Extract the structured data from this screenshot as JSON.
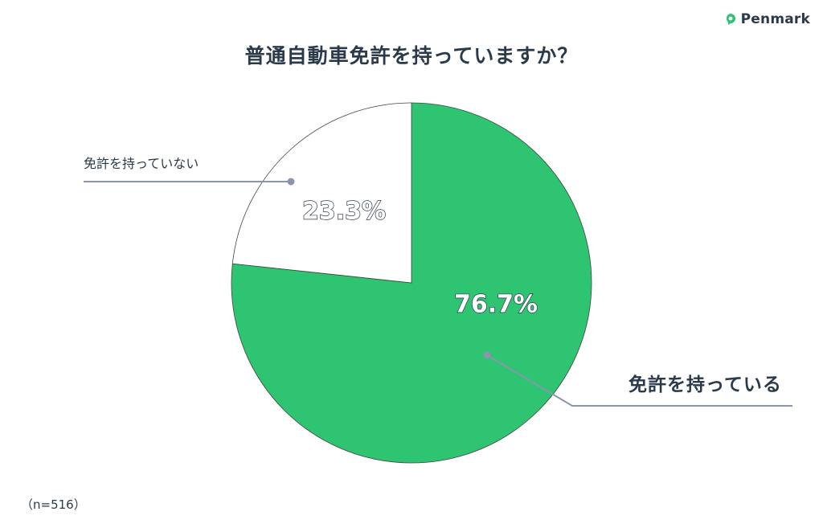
{
  "brand": {
    "name": "Penmark",
    "icon": "penmark-logo-icon",
    "color": "#2ec471"
  },
  "title": "普通自動車免許を持っていますか？",
  "sample_note": "（n=516）",
  "chart_data": {
    "type": "pie",
    "title": "普通自動車免許を持っていますか？",
    "slices": [
      {
        "label": "免許を持っている",
        "value": 76.7,
        "value_label": "76.7%",
        "color": "#2ec471"
      },
      {
        "label": "免許を持っていない",
        "value": 23.3,
        "value_label": "23.3%",
        "color": "#ffffff"
      }
    ],
    "start": "12 o'clock, clockwise",
    "legend": "none (callout lines)"
  }
}
